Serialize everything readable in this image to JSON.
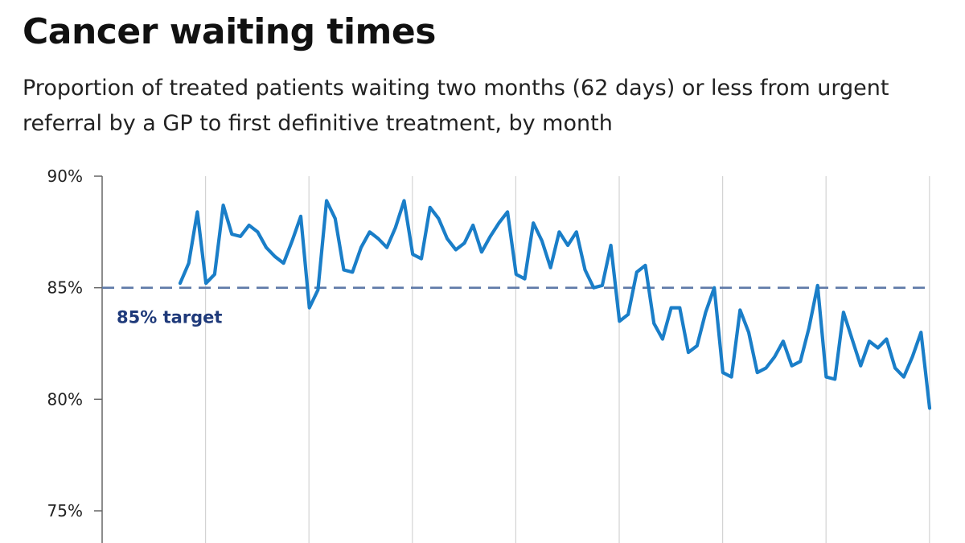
{
  "title": "Cancer waiting times",
  "subtitle": "Proportion of treated patients waiting two months (62 days) or less from urgent referral by a GP to first definitive treatment, by month",
  "colors": {
    "series": "#1a7ec8",
    "target": "#5f7aa8",
    "target_label": "#1f3a7a",
    "grid": "#d3d3d3",
    "axis": "#666666"
  },
  "chart_data": {
    "type": "line",
    "title": "Cancer waiting times",
    "subtitle": "Proportion of treated patients waiting two months (62 days) or less from urgent referral by a GP to first definitive treatment, by month",
    "xlabel": "",
    "ylabel": "",
    "ylim": [
      75,
      90
    ],
    "y_ticks": [
      90,
      85,
      80,
      75
    ],
    "y_tick_labels": [
      "90%",
      "85%",
      "80%",
      "75%"
    ],
    "grid": "vertical",
    "series": [
      {
        "values": [
          85.2,
          86.1,
          88.4,
          85.2,
          85.6,
          88.7,
          87.4,
          87.3,
          87.8,
          87.5,
          86.8,
          86.4,
          86.1,
          87.1,
          88.2,
          84.1,
          84.9,
          88.9,
          88.1,
          85.8,
          85.7,
          86.8,
          87.5,
          87.2,
          86.8,
          87.7,
          88.9,
          86.5,
          86.3,
          88.6,
          88.1,
          87.2,
          86.7,
          87.0,
          87.8,
          86.6,
          87.3,
          87.9,
          88.4,
          85.6,
          85.4,
          87.9,
          87.1,
          85.9,
          87.5,
          86.9,
          87.5,
          85.8,
          85.0,
          85.1,
          86.9,
          83.5,
          83.8,
          85.7,
          86.0,
          83.4,
          82.7,
          84.1,
          84.1,
          82.1,
          82.4,
          83.9,
          85.0,
          81.2,
          81.0,
          84.0,
          83.0,
          81.2,
          81.4,
          81.9,
          82.6,
          81.5,
          81.7,
          83.2,
          85.1,
          81.0,
          80.9,
          83.9,
          82.7,
          81.5,
          82.6,
          82.3,
          82.7,
          81.4,
          81.0,
          81.9,
          83.0,
          79.6
        ]
      }
    ],
    "reference_line": {
      "value": 85,
      "label": "85% target"
    }
  }
}
